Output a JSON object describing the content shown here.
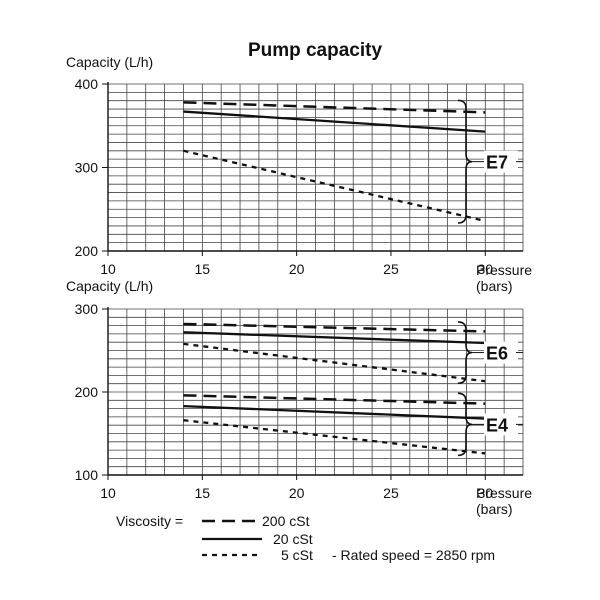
{
  "title": "Pump capacity",
  "chart_data": [
    {
      "type": "line",
      "ylabel": "Capacity (L/h)",
      "xlabel": "Pressure",
      "xlabel_unit": "(bars)",
      "xlim": [
        10,
        32
      ],
      "ylim": [
        200,
        400
      ],
      "x_ticks": [
        10,
        15,
        20,
        25,
        30
      ],
      "y_ticks": [
        200,
        300,
        400
      ],
      "grid": true,
      "groups": [
        {
          "label": "E7",
          "series": [
            {
              "viscosity": "200 cSt",
              "style": "long-dash",
              "x": [
                14,
                30
              ],
              "y": [
                378,
                366
              ]
            },
            {
              "viscosity": "20 cSt",
              "style": "solid",
              "x": [
                14,
                30
              ],
              "y": [
                367,
                343
              ]
            },
            {
              "viscosity": "5 cSt",
              "style": "short-dash",
              "x": [
                14,
                30
              ],
              "y": [
                320,
                236
              ]
            }
          ]
        }
      ]
    },
    {
      "type": "line",
      "ylabel": "Capacity (L/h)",
      "xlabel": "Pressure",
      "xlabel_unit": "(bars)",
      "xlim": [
        10,
        32
      ],
      "ylim": [
        100,
        300
      ],
      "x_ticks": [
        10,
        15,
        20,
        25,
        30
      ],
      "y_ticks": [
        100,
        200,
        300
      ],
      "grid": true,
      "groups": [
        {
          "label": "E6",
          "series": [
            {
              "viscosity": "200 cSt",
              "style": "long-dash",
              "x": [
                14,
                30
              ],
              "y": [
                282,
                273
              ]
            },
            {
              "viscosity": "20 cSt",
              "style": "solid",
              "x": [
                14,
                30
              ],
              "y": [
                272,
                259
              ]
            },
            {
              "viscosity": "5 cSt",
              "style": "short-dash",
              "x": [
                14,
                30
              ],
              "y": [
                258,
                213
              ]
            }
          ]
        },
        {
          "label": "E4",
          "series": [
            {
              "viscosity": "200 cSt",
              "style": "long-dash",
              "x": [
                14,
                30
              ],
              "y": [
                196,
                186
              ]
            },
            {
              "viscosity": "20 cSt",
              "style": "solid",
              "x": [
                14,
                30
              ],
              "y": [
                183,
                168
              ]
            },
            {
              "viscosity": "5 cSt",
              "style": "short-dash",
              "x": [
                14,
                30
              ],
              "y": [
                166,
                126
              ]
            }
          ]
        }
      ]
    }
  ],
  "legend": {
    "prefix": "Viscosity =",
    "entries": [
      {
        "style": "long-dash",
        "label": "200 cSt"
      },
      {
        "style": "solid",
        "label": "20 cSt"
      },
      {
        "style": "short-dash",
        "label": "5 cSt"
      }
    ],
    "note": "-  Rated speed = 2850 rpm"
  }
}
